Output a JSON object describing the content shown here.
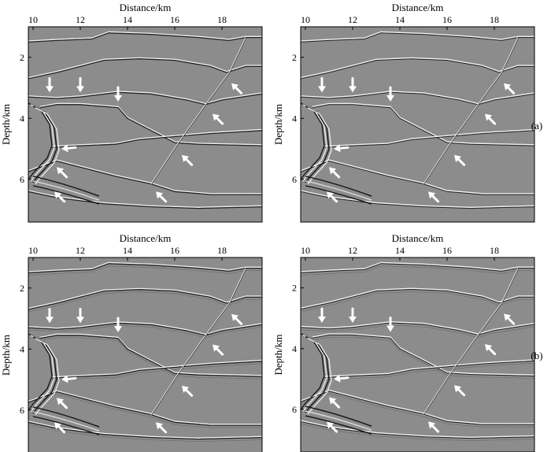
{
  "figure": {
    "x_axis_label": "Distance/km",
    "y_axis_label": "Depth/km",
    "x_ticks": [
      "10",
      "12",
      "14",
      "16",
      "18"
    ],
    "y_ticks": [
      "2",
      "4",
      "6"
    ],
    "row_labels": [
      "(a)",
      "(b)"
    ],
    "x_range_km": [
      9.8,
      19.7
    ],
    "y_range_km": [
      1.0,
      7.4
    ],
    "panels": [
      {
        "row": 0,
        "col": 0
      },
      {
        "row": 0,
        "col": 1
      },
      {
        "row": 1,
        "col": 0
      },
      {
        "row": 1,
        "col": 1
      }
    ],
    "arrows_km": [
      {
        "x": 10.7,
        "y": 3.15,
        "dir": "down"
      },
      {
        "x": 12.0,
        "y": 3.15,
        "dir": "down"
      },
      {
        "x": 13.6,
        "y": 3.45,
        "dir": "down"
      },
      {
        "x": 18.4,
        "y": 2.85,
        "dir": "up-left"
      },
      {
        "x": 17.6,
        "y": 3.85,
        "dir": "up-left"
      },
      {
        "x": 11.2,
        "y": 5.0,
        "dir": "left"
      },
      {
        "x": 16.3,
        "y": 5.2,
        "dir": "up-left"
      },
      {
        "x": 11.0,
        "y": 5.6,
        "dir": "up-left"
      },
      {
        "x": 15.2,
        "y": 6.4,
        "dir": "up-left"
      },
      {
        "x": 10.9,
        "y": 6.4,
        "dir": "up-left"
      }
    ]
  }
}
